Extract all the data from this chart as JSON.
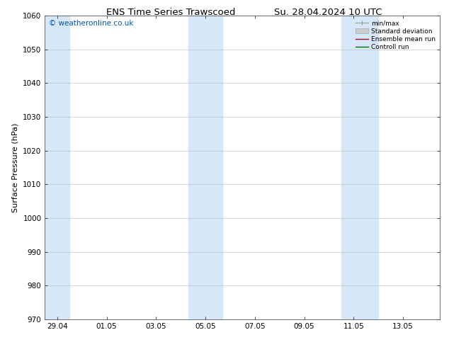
{
  "title_left": "ENS Time Series Trawscoed",
  "title_right": "Su. 28.04.2024 10 UTC",
  "ylabel": "Surface Pressure (hPa)",
  "ylim": [
    970,
    1060
  ],
  "yticks": [
    970,
    980,
    990,
    1000,
    1010,
    1020,
    1030,
    1040,
    1050,
    1060
  ],
  "xlim_start": 0,
  "xlim_end": 16,
  "xtick_labels": [
    "29.04",
    "01.05",
    "03.05",
    "05.05",
    "07.05",
    "09.05",
    "11.05",
    "13.05"
  ],
  "xtick_positions": [
    0.5,
    2.5,
    4.5,
    6.5,
    8.5,
    10.5,
    12.5,
    14.5
  ],
  "shaded_bands": [
    {
      "x_start": 0.0,
      "x_end": 1.0,
      "color": "#d6e8f7"
    },
    {
      "x_start": 5.8,
      "x_end": 7.2,
      "color": "#d6e8f7"
    },
    {
      "x_start": 12.0,
      "x_end": 13.5,
      "color": "#d6e8f7"
    }
  ],
  "watermark_text": "© weatheronline.co.uk",
  "watermark_color": "#0055aa",
  "bg_color": "#ffffff",
  "plot_bg_color": "#ffffff",
  "grid_color": "#bbbbbb",
  "title_fontsize": 9.5,
  "label_fontsize": 8,
  "tick_fontsize": 7.5,
  "watermark_fontsize": 7.5
}
